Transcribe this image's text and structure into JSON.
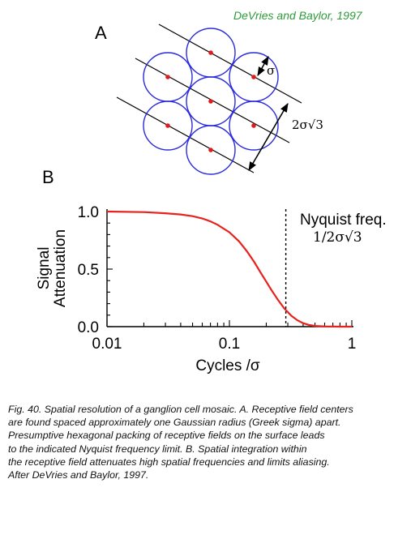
{
  "panel_a": {
    "label": "A",
    "credit": "DeVries and Baylor, 1997",
    "credit_color": "#2e9a3a",
    "sigma_label": "σ",
    "spacing_label": "2σ√3",
    "circle_color": "#2b2bdc",
    "center_color": "#e01b1b"
  },
  "panel_b": {
    "label": "B",
    "nyquist_line1": "Nyquist freq.",
    "nyquist_line2": "1/2σ√3"
  },
  "chart_data": {
    "type": "line",
    "xlabel": "Cycles /σ",
    "ylabel_line1": "Signal",
    "ylabel_line2": "Attenuation",
    "x_scale": "log",
    "xlim": [
      0.01,
      1
    ],
    "ylim": [
      0,
      1
    ],
    "x_tick_labels": [
      "0.01",
      "0.1",
      "1"
    ],
    "y_tick_labels": [
      "0.0",
      "0.5",
      "1.0"
    ],
    "grid": false,
    "line_color": "#e8211c",
    "nyquist_x": 0.289,
    "series": [
      {
        "x": [
          0.01,
          0.02,
          0.03,
          0.04,
          0.05,
          0.06,
          0.07,
          0.08,
          0.1,
          0.12,
          0.14,
          0.16,
          0.18,
          0.2,
          0.22,
          0.25,
          0.28,
          0.32,
          0.36,
          0.4,
          0.45,
          0.5,
          0.6,
          0.7,
          0.8,
          1.0
        ],
        "y": [
          1.0,
          0.995,
          0.985,
          0.975,
          0.96,
          0.94,
          0.915,
          0.885,
          0.82,
          0.74,
          0.65,
          0.56,
          0.47,
          0.39,
          0.32,
          0.23,
          0.16,
          0.095,
          0.055,
          0.03,
          0.014,
          0.006,
          0.002,
          0.0005,
          0.0001,
          0.0
        ]
      }
    ]
  },
  "caption": {
    "lines": [
      "Fig. 40. Spatial resolution of a ganglion cell mosaic. A. Receptive field centers",
      "are found spaced approximately one Gaussian radius (Greek sigma) apart.",
      "Presumptive hexagonal packing of receptive fields on the surface leads",
      "to the indicated Nyquist frequency limit. B. Spatial integration within",
      "the receptive field attenuates high spatial frequencies and limits aliasing.",
      "After DeVries and Baylor, 1997."
    ]
  }
}
